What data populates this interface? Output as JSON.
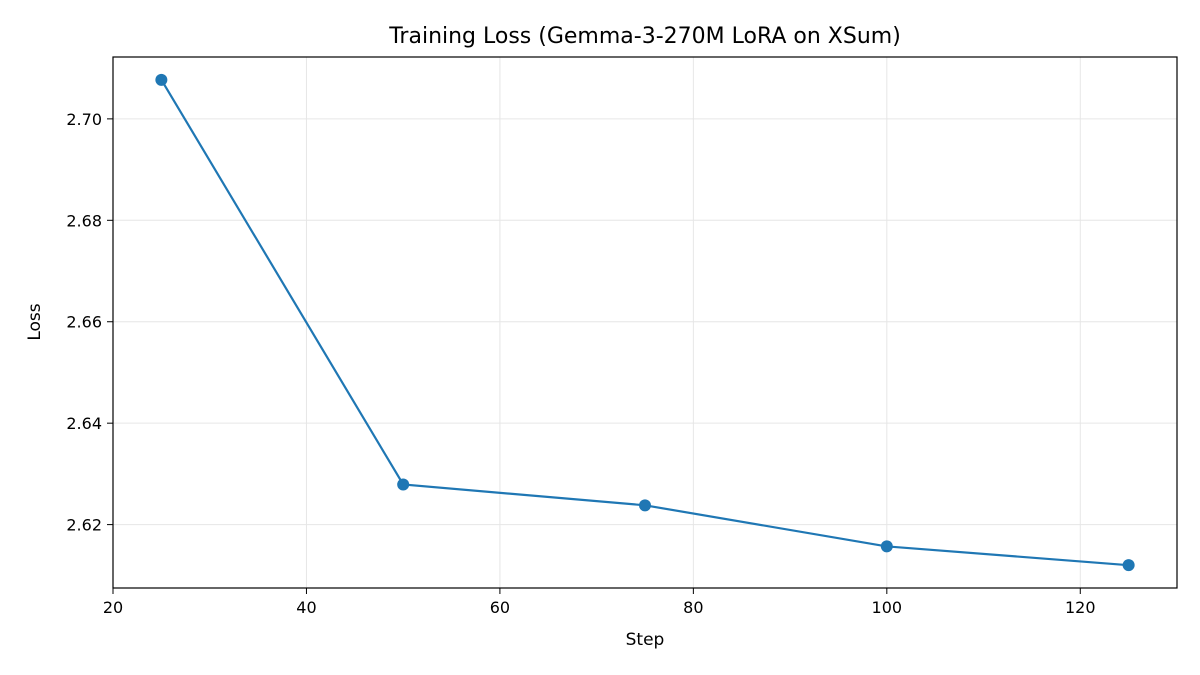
{
  "chart_data": {
    "type": "line",
    "title": "Training Loss (Gemma-3-270M LoRA on XSum)",
    "xlabel": "Step",
    "ylabel": "Loss",
    "x": [
      25,
      50,
      75,
      100,
      125
    ],
    "series": [
      {
        "values": [
          2.7077,
          2.6279,
          2.6238,
          2.6157,
          2.612
        ]
      }
    ],
    "xlim": [
      20,
      130
    ],
    "ylim": [
      2.6075,
      2.7122
    ],
    "xticks": [
      20,
      40,
      60,
      80,
      100,
      120
    ],
    "yticks": [
      2.62,
      2.64,
      2.66,
      2.68,
      2.7
    ],
    "ytick_labels": [
      "2.62",
      "2.64",
      "2.66",
      "2.68",
      "2.70"
    ],
    "xtick_labels": [
      "20",
      "40",
      "60",
      "80",
      "100",
      "120"
    ],
    "grid": true,
    "markers": "circle",
    "color": "#1f77b4"
  }
}
